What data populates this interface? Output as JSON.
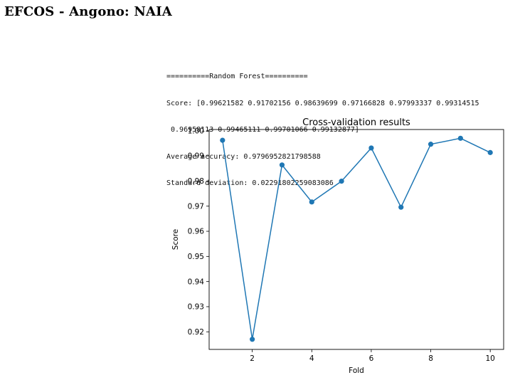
{
  "header": {
    "title": "EFCOS - Angono: NAIA"
  },
  "console": {
    "lines": [
      "==========Random Forest==========",
      "Score: [0.99621582 0.91702156 0.98639699 0.97166828 0.97993337 0.99314515",
      " 0.96958113 0.99465111 0.99701066 0.99132877]",
      "Average accuracy: 0.9796952821798588",
      "Standard deviation: 0.02291802259083086"
    ]
  },
  "chart_data": {
    "type": "line",
    "title": "Cross-validation results",
    "xlabel": "Fold",
    "ylabel": "Score",
    "x": [
      1,
      2,
      3,
      4,
      5,
      6,
      7,
      8,
      9,
      10
    ],
    "y": [
      0.99621582,
      0.91702156,
      0.98639699,
      0.97166828,
      0.97993337,
      0.99314515,
      0.96958113,
      0.99465111,
      0.99701066,
      0.99132877
    ],
    "xlim": [
      0.55,
      10.45
    ],
    "ylim": [
      0.913,
      1.0005
    ],
    "xticks": [
      2,
      4,
      6,
      8,
      10
    ],
    "yticks": [
      0.92,
      0.93,
      0.94,
      0.95,
      0.96,
      0.97,
      0.98,
      0.99,
      1.0
    ],
    "ytick_labels": [
      "0.92",
      "0.93",
      "0.94",
      "0.95",
      "0.96",
      "0.97",
      "0.98",
      "0.99",
      "1.00"
    ],
    "line_color": "#1f77b4",
    "grid": false,
    "markers": true
  }
}
